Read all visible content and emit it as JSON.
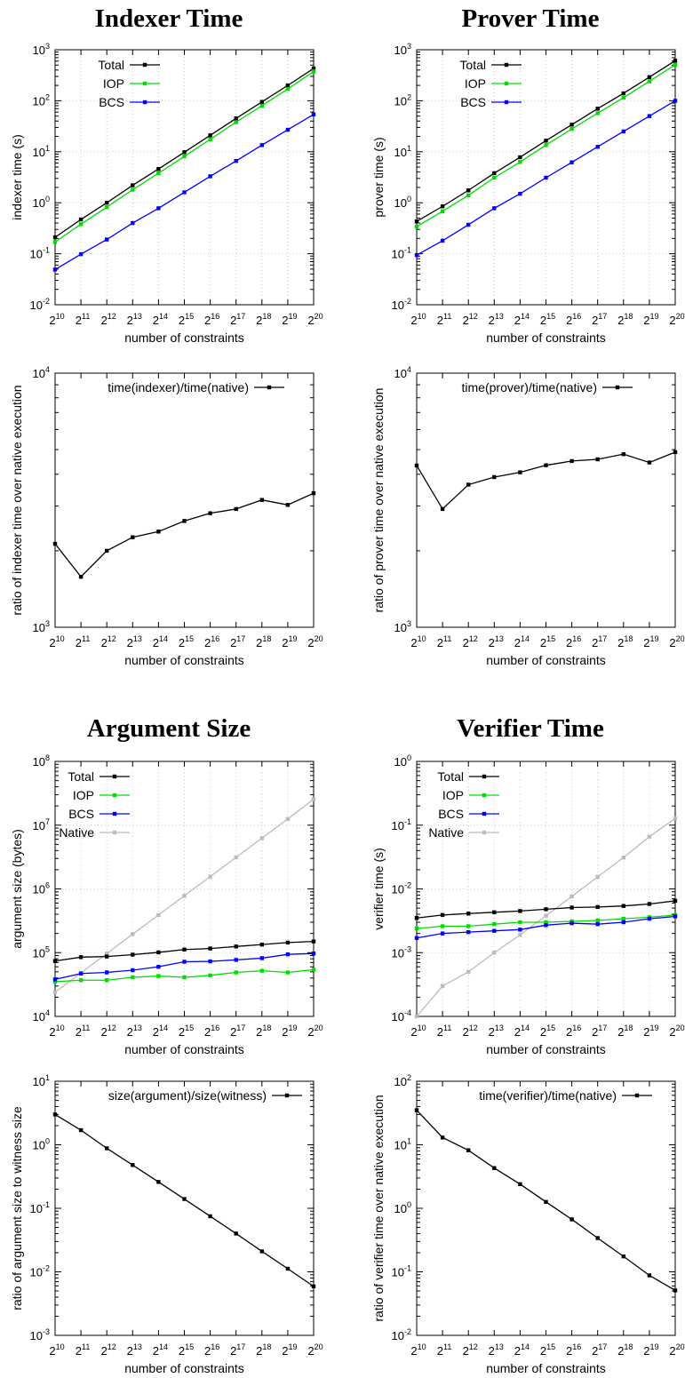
{
  "titles": [
    "Indexer Time",
    "Prover Time",
    "Argument Size",
    "Verifier Time"
  ],
  "chart_data": [
    {
      "type": "line",
      "title": "Indexer Time",
      "xlabel": "number of constraints",
      "ylabel": "indexer time (s)",
      "yscale": "log",
      "ylim": [
        0.01,
        1000
      ],
      "grid": true,
      "legend_position": "top-left",
      "x": [
        "2^10",
        "2^11",
        "2^12",
        "2^13",
        "2^14",
        "2^15",
        "2^16",
        "2^17",
        "2^18",
        "2^19",
        "2^20"
      ],
      "series": [
        {
          "name": "Total",
          "color": "#000000",
          "values": [
            0.21,
            0.47,
            1.0,
            2.2,
            4.6,
            9.8,
            21,
            45,
            95,
            200,
            430
          ]
        },
        {
          "name": "IOP",
          "color": "#00dd00",
          "values": [
            0.17,
            0.38,
            0.82,
            1.8,
            3.8,
            8.1,
            17.5,
            38,
            80,
            170,
            375
          ]
        },
        {
          "name": "BCS",
          "color": "#0000ff",
          "values": [
            0.049,
            0.098,
            0.19,
            0.4,
            0.78,
            1.6,
            3.3,
            6.6,
            13.5,
            27,
            54
          ]
        }
      ]
    },
    {
      "type": "line",
      "title": "Prover Time",
      "xlabel": "number of constraints",
      "ylabel": "prover time (s)",
      "yscale": "log",
      "ylim": [
        0.01,
        1000
      ],
      "grid": true,
      "legend_position": "top-left",
      "x": [
        "2^10",
        "2^11",
        "2^12",
        "2^13",
        "2^14",
        "2^15",
        "2^16",
        "2^17",
        "2^18",
        "2^19",
        "2^20"
      ],
      "series": [
        {
          "name": "Total",
          "color": "#000000",
          "values": [
            0.43,
            0.85,
            1.75,
            3.8,
            7.8,
            16.5,
            34,
            70,
            140,
            290,
            610
          ]
        },
        {
          "name": "IOP",
          "color": "#00dd00",
          "values": [
            0.34,
            0.68,
            1.4,
            3.1,
            6.3,
            13.5,
            28,
            57,
            115,
            240,
            510
          ]
        },
        {
          "name": "BCS",
          "color": "#0000ff",
          "values": [
            0.094,
            0.18,
            0.37,
            0.78,
            1.5,
            3.1,
            6.2,
            12.5,
            25,
            50,
            100
          ]
        }
      ]
    },
    {
      "type": "line",
      "title": "",
      "xlabel": "number of constraints",
      "ylabel": "ratio of indexer time over native execution",
      "yscale": "log",
      "ylim": [
        1000,
        10000
      ],
      "grid": false,
      "legend_position": "top-center",
      "x": [
        "2^10",
        "2^11",
        "2^12",
        "2^13",
        "2^14",
        "2^15",
        "2^16",
        "2^17",
        "2^18",
        "2^19",
        "2^20"
      ],
      "series": [
        {
          "name": "time(indexer)/time(native)",
          "color": "#000000",
          "values": [
            2130,
            1580,
            2000,
            2260,
            2380,
            2620,
            2810,
            2920,
            3170,
            3030,
            3370
          ]
        }
      ]
    },
    {
      "type": "line",
      "title": "",
      "xlabel": "number of constraints",
      "ylabel": "ratio of prover time over native execution",
      "yscale": "log",
      "ylim": [
        1000,
        10000
      ],
      "grid": false,
      "legend_position": "top-center",
      "x": [
        "2^10",
        "2^11",
        "2^12",
        "2^13",
        "2^14",
        "2^15",
        "2^16",
        "2^17",
        "2^18",
        "2^19",
        "2^20"
      ],
      "series": [
        {
          "name": "time(prover)/time(native)",
          "color": "#000000",
          "values": [
            4330,
            2920,
            3640,
            3900,
            4070,
            4340,
            4510,
            4580,
            4800,
            4450,
            4890
          ]
        }
      ]
    },
    {
      "type": "line",
      "title": "Argument Size",
      "xlabel": "number of constraints",
      "ylabel": "argument size (bytes)",
      "yscale": "log",
      "ylim": [
        10000,
        100000000
      ],
      "grid": true,
      "legend_position": "top-left",
      "x": [
        "2^10",
        "2^11",
        "2^12",
        "2^13",
        "2^14",
        "2^15",
        "2^16",
        "2^17",
        "2^18",
        "2^19",
        "2^20"
      ],
      "series": [
        {
          "name": "Total",
          "color": "#000000",
          "values": [
            74000,
            85000,
            87000,
            93000,
            101000,
            112000,
            116000,
            125000,
            134000,
            144000,
            150000
          ]
        },
        {
          "name": "IOP",
          "color": "#00dd00",
          "values": [
            35000,
            37000,
            37000,
            41000,
            43000,
            41000,
            44000,
            49000,
            52000,
            49000,
            54000
          ]
        },
        {
          "name": "BCS",
          "color": "#0000ff",
          "values": [
            38000,
            47000,
            49000,
            53000,
            60000,
            72000,
            73000,
            77000,
            82000,
            94000,
            97000
          ]
        },
        {
          "name": "Native",
          "color": "#bbbbbb",
          "values": [
            24000,
            48000,
            97000,
            195000,
            390000,
            780000,
            1560000,
            3120000,
            6250000,
            12500000,
            25600000
          ]
        }
      ]
    },
    {
      "type": "line",
      "title": "Verifier Time",
      "xlabel": "number of constraints",
      "ylabel": "verifier time (s)",
      "yscale": "log",
      "ylim": [
        0.0001,
        1
      ],
      "grid": true,
      "legend_position": "top-left",
      "x": [
        "2^10",
        "2^11",
        "2^12",
        "2^13",
        "2^14",
        "2^15",
        "2^16",
        "2^17",
        "2^18",
        "2^19",
        "2^20"
      ],
      "series": [
        {
          "name": "Total",
          "color": "#000000",
          "values": [
            0.0035,
            0.0039,
            0.0041,
            0.0043,
            0.0045,
            0.0048,
            0.0051,
            0.0052,
            0.0054,
            0.0058,
            0.0065
          ]
        },
        {
          "name": "IOP",
          "color": "#00dd00",
          "values": [
            0.0024,
            0.0026,
            0.0026,
            0.0028,
            0.003,
            0.003,
            0.0031,
            0.0032,
            0.0034,
            0.0036,
            0.0039
          ]
        },
        {
          "name": "BCS",
          "color": "#0000ff",
          "values": [
            0.0017,
            0.002,
            0.0021,
            0.0022,
            0.0023,
            0.0027,
            0.0029,
            0.0028,
            0.003,
            0.0034,
            0.0037
          ]
        },
        {
          "name": "Native",
          "color": "#bbbbbb",
          "values": [
            0.0001,
            0.0003,
            0.0005,
            0.001,
            0.0019,
            0.0038,
            0.0076,
            0.0155,
            0.031,
            0.066,
            0.128
          ]
        }
      ]
    },
    {
      "type": "line",
      "title": "",
      "xlabel": "number of constraints",
      "ylabel": "ratio of argument size to witness size",
      "yscale": "log",
      "ylim": [
        0.001,
        10
      ],
      "grid": false,
      "legend_position": "top-right",
      "x": [
        "2^10",
        "2^11",
        "2^12",
        "2^13",
        "2^14",
        "2^15",
        "2^16",
        "2^17",
        "2^18",
        "2^19",
        "2^20"
      ],
      "series": [
        {
          "name": "size(argument)/size(witness)",
          "color": "#000000",
          "values": [
            3.0,
            1.7,
            0.88,
            0.48,
            0.26,
            0.14,
            0.075,
            0.04,
            0.021,
            0.0112,
            0.0059
          ]
        }
      ]
    },
    {
      "type": "line",
      "title": "",
      "xlabel": "number of constraints",
      "ylabel": "ratio of verifier time over native execution",
      "yscale": "log",
      "ylim": [
        0.01,
        100
      ],
      "grid": false,
      "legend_position": "top-right",
      "x": [
        "2^10",
        "2^11",
        "2^12",
        "2^13",
        "2^14",
        "2^15",
        "2^16",
        "2^17",
        "2^18",
        "2^19",
        "2^20"
      ],
      "series": [
        {
          "name": "time(verifier)/time(native)",
          "color": "#000000",
          "values": [
            35,
            13,
            8.2,
            4.3,
            2.4,
            1.26,
            0.67,
            0.34,
            0.175,
            0.088,
            0.051
          ]
        }
      ]
    }
  ]
}
